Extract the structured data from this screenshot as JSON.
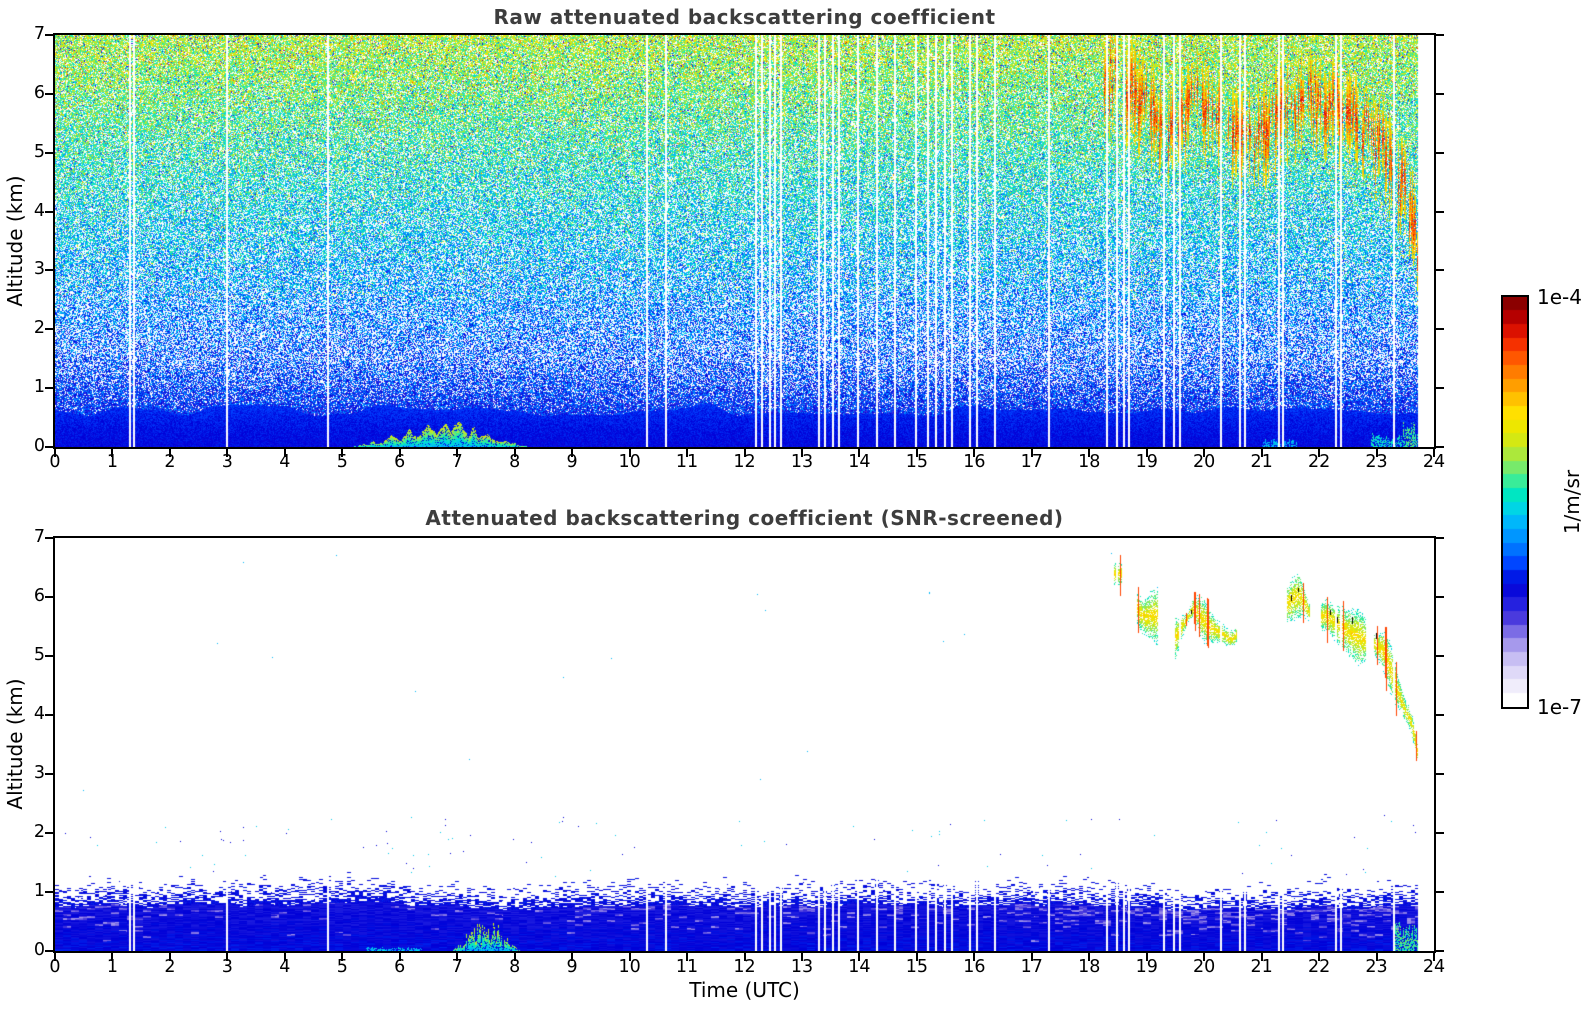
{
  "figure": {
    "background": "#ffffff",
    "title_color": "#3d3d3d",
    "frame_color": "#000000"
  },
  "top_chart": {
    "title": "Raw attenuated backscattering coefficient"
  },
  "bottom_chart": {
    "title": "Attenuated backscattering coefficient (SNR-screened)",
    "xlabel": "Time (UTC)"
  },
  "shared": {
    "ylabel": "Altitude (km)"
  },
  "colorbar": {
    "label": "1/m/sr",
    "top_label": "1e-4",
    "bottom_label": "1e-7",
    "scale": "log",
    "steps": 30,
    "stops": [
      [
        0.0,
        "#ffffff"
      ],
      [
        0.045,
        "#ece8fb"
      ],
      [
        0.09,
        "#d4ccf6"
      ],
      [
        0.13,
        "#b0a4ee"
      ],
      [
        0.17,
        "#7f70e6"
      ],
      [
        0.21,
        "#4636dd"
      ],
      [
        0.25,
        "#1c1ce0"
      ],
      [
        0.29,
        "#0000d8"
      ],
      [
        0.34,
        "#0040ff"
      ],
      [
        0.39,
        "#0080ff"
      ],
      [
        0.44,
        "#00b0ff"
      ],
      [
        0.48,
        "#00d4e8"
      ],
      [
        0.52,
        "#00e8c0"
      ],
      [
        0.56,
        "#48ee90"
      ],
      [
        0.6,
        "#90e858"
      ],
      [
        0.64,
        "#c8e820"
      ],
      [
        0.68,
        "#e8e800"
      ],
      [
        0.72,
        "#ffe400"
      ],
      [
        0.76,
        "#ffc000"
      ],
      [
        0.8,
        "#ff9800"
      ],
      [
        0.84,
        "#ff7000"
      ],
      [
        0.88,
        "#ff4400"
      ],
      [
        0.92,
        "#e81800"
      ],
      [
        0.96,
        "#bc0000"
      ],
      [
        1.0,
        "#8b0000"
      ]
    ]
  },
  "axes": {
    "x_ticks": [
      "0",
      "1",
      "2",
      "3",
      "4",
      "5",
      "6",
      "7",
      "8",
      "9",
      "10",
      "11",
      "12",
      "13",
      "14",
      "15",
      "16",
      "17",
      "18",
      "19",
      "20",
      "21",
      "22",
      "23",
      "24"
    ],
    "y_ticks": [
      "0",
      "1",
      "2",
      "3",
      "4",
      "5",
      "6",
      "7"
    ]
  },
  "chart_data": [
    {
      "type": "heatmap",
      "panel": "top",
      "title": "Raw attenuated backscattering coefficient",
      "xlabel": "",
      "ylabel": "Altitude (km)",
      "x_range": [
        0,
        24
      ],
      "y_range": [
        0,
        7
      ],
      "x_ticks": [
        0,
        1,
        2,
        3,
        4,
        5,
        6,
        7,
        8,
        9,
        10,
        11,
        12,
        13,
        14,
        15,
        16,
        17,
        18,
        19,
        20,
        21,
        22,
        23,
        24
      ],
      "y_ticks": [
        0,
        1,
        2,
        3,
        4,
        5,
        6,
        7
      ],
      "colorbar": {
        "units": "1/m/sr",
        "max": "1e-4",
        "min": "1e-7",
        "scale": "log"
      },
      "data_end_hour": 23.72,
      "gap_hours": [
        1.28,
        1.36,
        2.98,
        4.74,
        10.28,
        10.62,
        12.18,
        12.28,
        12.42,
        12.52,
        12.62,
        13.28,
        13.38,
        13.52,
        13.62,
        13.95,
        14.28,
        14.6,
        14.97,
        15.18,
        15.32,
        15.47,
        15.6,
        15.9,
        16.03,
        16.35,
        17.28,
        18.3,
        18.47,
        18.58,
        18.68,
        19.28,
        19.45,
        19.57,
        20.28,
        20.6,
        20.7,
        21.28,
        21.35,
        22.28,
        22.37,
        23.28
      ],
      "noise_floor": {
        "base": 0.285,
        "slope_per_km": 0.0485,
        "jitter": 0.11,
        "density_base": 0.47,
        "density_slope": 0.048,
        "density_max": 0.82
      },
      "surface_layer": {
        "solid_top_km": 0.52,
        "value": 0.29
      },
      "aerosol_plume": {
        "t_start": 5.1,
        "t_end": 8.3,
        "peak_t": 7.4,
        "max_alt_km": 0.38,
        "value": 0.5
      },
      "surface_patches": [
        {
          "t0": 21.0,
          "t1": 21.6,
          "alt": 0.12,
          "value": 0.45
        },
        {
          "t0": 22.9,
          "t1": 23.45,
          "alt": 0.22,
          "value": 0.5
        },
        {
          "t0": 23.45,
          "t1": 23.72,
          "alt": 0.4,
          "value": 0.55
        }
      ],
      "cloud_band": {
        "path": [
          [
            18.25,
            6.35
          ],
          [
            18.6,
            6.2
          ],
          [
            18.9,
            5.9
          ],
          [
            19.2,
            5.6
          ],
          [
            19.5,
            5.45
          ],
          [
            19.8,
            5.95
          ],
          [
            20.1,
            5.65
          ],
          [
            20.5,
            5.3
          ],
          [
            20.9,
            5.25
          ],
          [
            21.3,
            5.7
          ],
          [
            21.7,
            5.95
          ],
          [
            22.1,
            5.9
          ],
          [
            22.5,
            5.6
          ],
          [
            22.85,
            5.4
          ],
          [
            23.15,
            5.05
          ],
          [
            23.4,
            4.5
          ],
          [
            23.6,
            3.9
          ],
          [
            23.72,
            3.3
          ]
        ],
        "value_range": [
          0.62,
          0.9
        ],
        "streak_prob": 0.55
      }
    },
    {
      "type": "heatmap",
      "panel": "bottom",
      "title": "Attenuated backscattering coefficient (SNR-screened)",
      "xlabel": "Time (UTC)",
      "ylabel": "Altitude (km)",
      "x_range": [
        0,
        24
      ],
      "y_range": [
        0,
        7
      ],
      "x_ticks": [
        0,
        1,
        2,
        3,
        4,
        5,
        6,
        7,
        8,
        9,
        10,
        11,
        12,
        13,
        14,
        15,
        16,
        17,
        18,
        19,
        20,
        21,
        22,
        23,
        24
      ],
      "y_ticks": [
        0,
        1,
        2,
        3,
        4,
        5,
        6,
        7
      ],
      "colorbar": {
        "units": "1/m/sr",
        "max": "1e-4",
        "min": "1e-7",
        "scale": "log"
      },
      "data_end_hour": 23.72,
      "gap_hours": [
        1.28,
        1.36,
        2.98,
        4.74,
        10.28,
        10.62,
        12.18,
        12.28,
        12.42,
        12.52,
        12.62,
        13.28,
        13.38,
        13.52,
        13.62,
        13.95,
        14.28,
        14.6,
        14.97,
        15.18,
        15.32,
        15.47,
        15.6,
        15.9,
        16.03,
        16.35,
        17.28,
        18.3,
        18.47,
        18.58,
        18.68,
        19.28,
        19.45,
        19.57,
        20.28,
        20.6,
        20.7,
        21.28,
        21.35,
        22.28,
        22.37,
        23.28
      ],
      "boundary_layer": {
        "mean_top_km": 1.0,
        "solid_value": 0.3,
        "fringe_top_km": 1.35,
        "lavender_value": 0.14
      },
      "aerosol_plume": {
        "t_start": 6.9,
        "t_end": 8.1,
        "peak_t": 7.4,
        "max_alt_km": 0.45,
        "value": 0.5
      },
      "surface_patches": [
        {
          "t0": 5.4,
          "t1": 6.4,
          "alt": 0.06,
          "value": 0.45
        },
        {
          "t0": 23.3,
          "t1": 23.72,
          "alt": 0.45,
          "value": 0.55
        }
      ],
      "cloud_band": {
        "path": [
          [
            18.25,
            6.35
          ],
          [
            18.6,
            6.2
          ],
          [
            18.9,
            5.9
          ],
          [
            19.2,
            5.6
          ],
          [
            19.5,
            5.45
          ],
          [
            19.8,
            5.95
          ],
          [
            20.1,
            5.65
          ],
          [
            20.5,
            5.3
          ],
          [
            20.9,
            5.25
          ],
          [
            21.3,
            5.7
          ],
          [
            21.7,
            5.95
          ],
          [
            22.1,
            5.9
          ],
          [
            22.5,
            5.6
          ],
          [
            22.85,
            5.4
          ],
          [
            23.15,
            5.05
          ],
          [
            23.4,
            4.5
          ],
          [
            23.6,
            3.9
          ],
          [
            23.72,
            3.3
          ]
        ],
        "value_range": [
          0.5,
          0.88
        ],
        "activity_threshold": 0.42,
        "red_streak_prob": 0.1,
        "black_speck_prob": 0.02
      }
    }
  ]
}
